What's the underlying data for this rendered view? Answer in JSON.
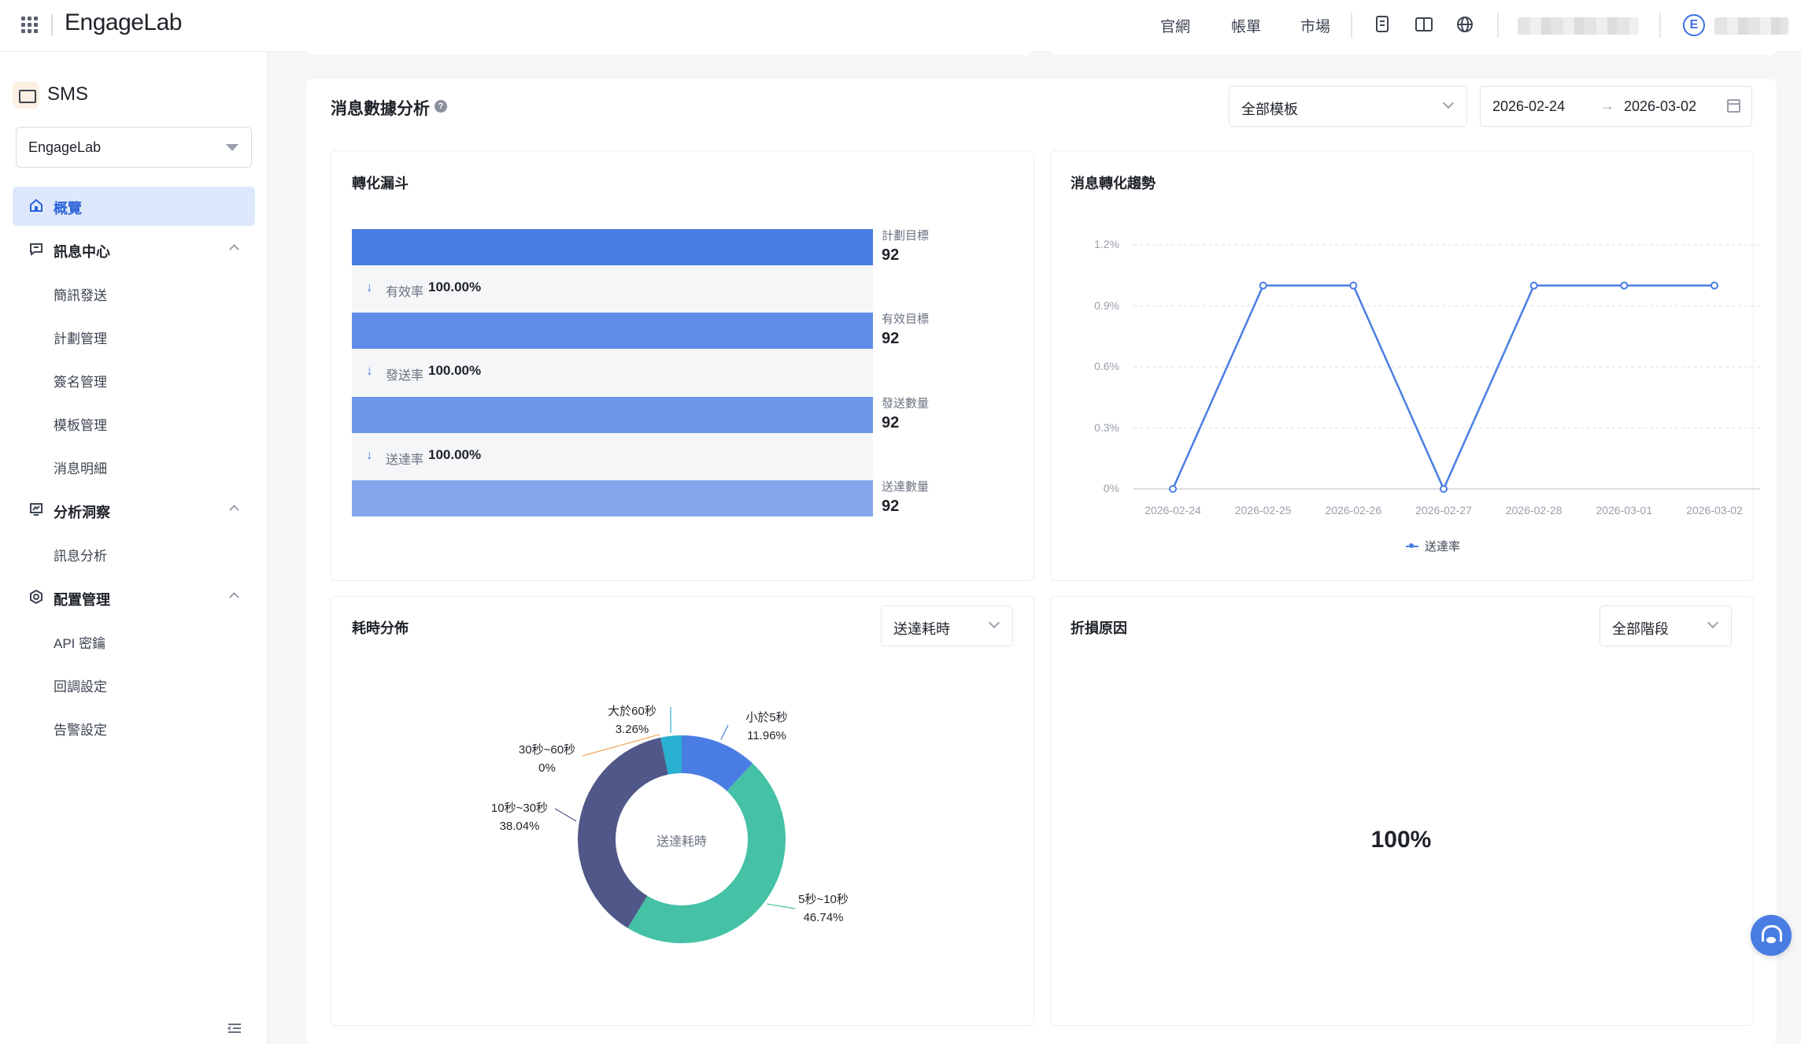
{
  "header": {
    "logo": "EngageLab",
    "nav": [
      "官網",
      "帳單",
      "市場"
    ],
    "icons": [
      "grid-apps-icon",
      "document-icon",
      "book-icon",
      "globe-icon",
      "avatar-icon"
    ],
    "avatar_letter": "E"
  },
  "sidebar": {
    "product": "SMS",
    "project": "EngageLab",
    "menu": [
      {
        "label": "概覽",
        "icon": "home-icon",
        "active": true
      },
      {
        "label": "訊息中心",
        "icon": "message-icon",
        "children": [
          "簡訊發送",
          "計劃管理",
          "簽名管理",
          "模板管理",
          "消息明細"
        ]
      },
      {
        "label": "分析洞察",
        "icon": "analytics-icon",
        "children": [
          "訊息分析"
        ]
      },
      {
        "label": "配置管理",
        "icon": "settings-icon",
        "children": [
          "API 密鑰",
          "回調設定",
          "告警設定"
        ]
      }
    ]
  },
  "main": {
    "title": "消息數據分析",
    "help": "?",
    "template_select": "全部模板",
    "date_start": "2026-02-24",
    "date_arrow": "→",
    "date_end": "2026-03-02"
  },
  "funnel": {
    "title": "轉化漏斗",
    "stages": [
      {
        "label": "計劃目標",
        "value": "92",
        "color": "#4a7de3"
      },
      {
        "label": "有效目標",
        "value": "92",
        "color": "#5f8ce6"
      },
      {
        "label": "發送數量",
        "value": "92",
        "color": "#6f97e8"
      },
      {
        "label": "送達數量",
        "value": "92",
        "color": "#85a6ec"
      }
    ],
    "rates": [
      {
        "label": "有效率",
        "value": "100.00%"
      },
      {
        "label": "發送率",
        "value": "100.00%"
      },
      {
        "label": "送達率",
        "value": "100.00%"
      }
    ]
  },
  "trend": {
    "title": "消息轉化趨勢",
    "legend": "送達率"
  },
  "duration": {
    "title": "耗時分佈",
    "select": "送達耗時",
    "center": "送達耗時",
    "labels": [
      {
        "name": "小於5秒",
        "pct": "11.96%"
      },
      {
        "name": "5秒~10秒",
        "pct": "46.74%"
      },
      {
        "name": "10秒~30秒",
        "pct": "38.04%"
      },
      {
        "name": "30秒~60秒",
        "pct": "0%"
      },
      {
        "name": "大於60秒",
        "pct": "3.26%"
      }
    ]
  },
  "loss": {
    "title": "折損原因",
    "select": "全部階段",
    "center": "100%"
  },
  "chart_data": [
    {
      "type": "line",
      "title": "消息轉化趨勢",
      "x": [
        "2026-02-24",
        "2026-02-25",
        "2026-02-26",
        "2026-02-27",
        "2026-02-28",
        "2026-03-01",
        "2026-03-02"
      ],
      "series": [
        {
          "name": "送達率",
          "values": [
            0,
            1.0,
            1.0,
            0,
            1.0,
            1.0,
            1.0
          ]
        }
      ],
      "yticks": [
        "0%",
        "0.3%",
        "0.6%",
        "0.9%",
        "1.2%"
      ],
      "ylim": [
        0,
        1.2
      ],
      "grid": true,
      "legend": "bottom",
      "color": "#4a7de3"
    },
    {
      "type": "pie",
      "title": "耗時分佈",
      "donut": true,
      "categories": [
        "小於5秒",
        "5秒~10秒",
        "10秒~30秒",
        "30秒~60秒",
        "大於60秒"
      ],
      "values": [
        11.96,
        46.74,
        38.04,
        0,
        3.26
      ],
      "colors": [
        "#4a7de3",
        "#45c1a6",
        "#4f5888",
        "#f0a35a",
        "#2ab0d0"
      ]
    },
    {
      "type": "pie",
      "title": "折損原因",
      "donut": true,
      "categories": [
        ""
      ],
      "values": [
        100
      ],
      "colors": [
        "#d4d4d4"
      ]
    },
    {
      "type": "bar",
      "title": "轉化漏斗",
      "categories": [
        "計劃目標",
        "有效目標",
        "發送數量",
        "送達數量"
      ],
      "values": [
        92,
        92,
        92,
        92
      ]
    }
  ]
}
